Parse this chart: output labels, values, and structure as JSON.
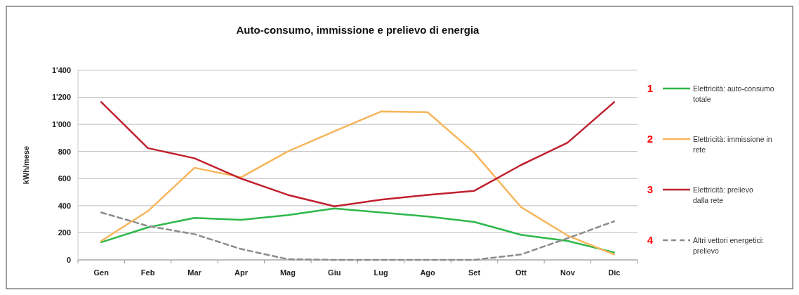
{
  "chart_data": {
    "type": "line",
    "title": "Auto-consumo, immissione e prelievo di energia",
    "ylabel": "kWh/mese",
    "categories": [
      "Gen",
      "Feb",
      "Mar",
      "Apr",
      "Mag",
      "Giu",
      "Lug",
      "Ago",
      "Set",
      "Ott",
      "Nov",
      "Dic"
    ],
    "series": [
      {
        "name": "Elettricità: auto-consumo totale",
        "color": "#2db84a",
        "values": [
          130,
          240,
          310,
          295,
          330,
          380,
          350,
          320,
          280,
          185,
          140,
          55
        ]
      },
      {
        "name": "Elettricità: immissione in rete",
        "color": "#f7b55a",
        "values": [
          140,
          360,
          680,
          610,
          800,
          950,
          1095,
          1090,
          790,
          390,
          180,
          40
        ]
      },
      {
        "name": "Elettricità: prelievo dalla rete",
        "color": "#c0202e",
        "values": [
          1165,
          825,
          750,
          600,
          480,
          395,
          445,
          480,
          510,
          700,
          865,
          1165
        ]
      },
      {
        "name": "Altri vettori energetici: prelievo",
        "color": "#8c8c8c",
        "line_style": "dashed",
        "values": [
          350,
          250,
          190,
          80,
          5,
          0,
          0,
          0,
          0,
          40,
          160,
          285
        ]
      }
    ],
    "ylim": [
      0,
      1400
    ],
    "yticks": [
      0,
      200,
      400,
      600,
      800,
      {
        "value": 1000,
        "label": "1'000"
      },
      {
        "value": 1200,
        "label": "1'200"
      },
      {
        "value": 1400,
        "label": "1'400"
      }
    ],
    "grid": "y",
    "legend": "right",
    "marker": "none",
    "annotations": [
      "1",
      "2",
      "3",
      "4"
    ]
  }
}
